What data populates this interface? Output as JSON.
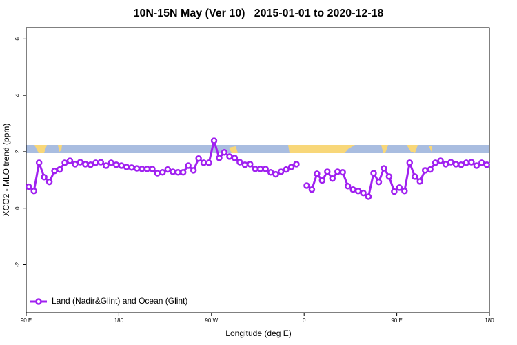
{
  "chart_data": {
    "type": "line",
    "title": "10N-15N May (Ver 10)   2015-01-01 to 2020-12-18",
    "x_label": "Longitude (deg E)",
    "y_label": "XCO2 - MLO trend (ppm)",
    "x": [
      92.5,
      97.5,
      102.5,
      107.5,
      112.5,
      117.5,
      122.5,
      127.5,
      132.5,
      137.5,
      142.5,
      147.5,
      152.5,
      157.5,
      162.5,
      167.5,
      172.5,
      177.5,
      182.5,
      187.5,
      192.5,
      197.5,
      202.5,
      207.5,
      212.5,
      217.5,
      222.5,
      227.5,
      232.5,
      237.5,
      242.5,
      247.5,
      252.5,
      257.5,
      262.5,
      267.5,
      272.5,
      277.5,
      282.5,
      287.5,
      292.5,
      297.5,
      302.5,
      307.5,
      312.5,
      317.5,
      322.5,
      327.5,
      332.5,
      337.5,
      342.5,
      347.5,
      352.5,
      357.5,
      362.5,
      367.5,
      372.5,
      377.5,
      382.5,
      387.5,
      392.5,
      397.5,
      402.5,
      407.5,
      412.5,
      417.5,
      422.5,
      427.5,
      432.5,
      437.5,
      442.5,
      447.5,
      452.5,
      457.5,
      462.5,
      467.5,
      472.5,
      477.5,
      482.5,
      487.5,
      492.5,
      497.5,
      502.5,
      507.5,
      512.5,
      517.5,
      522.5,
      527.5,
      532.5,
      537.5
    ],
    "series": [
      {
        "name": "Land (Nadir&Glint) and Ocean (Glint)",
        "color": "#a020f0",
        "values": [
          0.76,
          0.61,
          1.61,
          1.1,
          0.93,
          1.32,
          1.37,
          1.61,
          1.68,
          1.56,
          1.63,
          1.56,
          1.54,
          1.61,
          1.63,
          1.51,
          1.61,
          1.54,
          1.51,
          1.46,
          1.44,
          1.41,
          1.39,
          1.39,
          1.39,
          1.24,
          1.27,
          1.37,
          1.29,
          1.27,
          1.27,
          1.51,
          1.34,
          1.76,
          1.61,
          1.61,
          2.39,
          1.78,
          1.98,
          1.83,
          1.78,
          1.63,
          1.54,
          1.56,
          1.39,
          1.39,
          1.39,
          1.27,
          1.2,
          1.29,
          1.37,
          1.46,
          1.56,
          null,
          0.8,
          0.66,
          1.22,
          0.98,
          1.29,
          1.05,
          1.29,
          1.27,
          0.78,
          0.66,
          0.61,
          0.54,
          0.41,
          1.24,
          0.93,
          1.41,
          1.12,
          0.59,
          0.73,
          0.61,
          1.61,
          1.12,
          0.95,
          1.34,
          1.37,
          1.61,
          1.68,
          1.56,
          1.63,
          1.56,
          1.54,
          1.61,
          1.63,
          1.51,
          1.61,
          1.54
        ]
      }
    ],
    "xlim": [
      90,
      540
    ],
    "xticks": [
      {
        "value": 90,
        "label": "90 E"
      },
      180,
      {
        "value": 270,
        "label": "90 W"
      },
      {
        "value": 360,
        "label": "0"
      },
      {
        "value": 450,
        "label": "90 E"
      },
      {
        "value": 540,
        "label": "180"
      }
    ],
    "ylim": [
      -3.7,
      6.4
    ],
    "yticks": [
      -2,
      0,
      2,
      4,
      6
    ],
    "grid": false,
    "legend": "bottom-left"
  }
}
